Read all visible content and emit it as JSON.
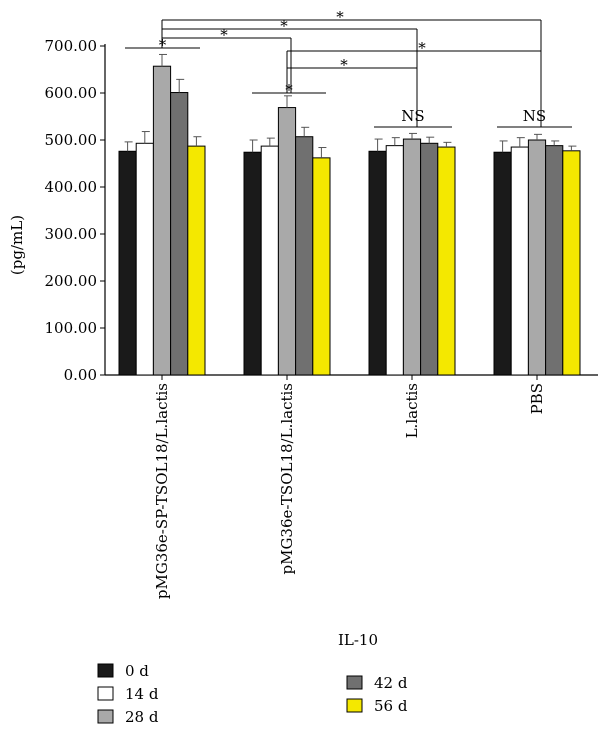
{
  "chart_data": {
    "type": "bar",
    "title": "",
    "xlabel": "IL-10",
    "ylabel": "(pg/mL)",
    "ylim": [
      0,
      700
    ],
    "yticks": [
      "0.00",
      "100.00",
      "200.00",
      "300.00",
      "400.00",
      "500.00",
      "600.00",
      "700.00"
    ],
    "categories": [
      "pMG36e-SP-TSOL18/L.lactis",
      "pMG36e-TSOL18/L.lactis",
      "L.lactis",
      "PBS"
    ],
    "series": [
      {
        "name": "0 d",
        "color": "#1a1a1a",
        "values": [
          476,
          474,
          476,
          474
        ],
        "errors": [
          20,
          26,
          26,
          24
        ]
      },
      {
        "name": "14 d",
        "color": "#ffffff",
        "values": [
          493,
          487,
          488,
          485
        ],
        "errors": [
          25,
          17,
          17,
          20
        ]
      },
      {
        "name": "28 d",
        "color": "#a9a9a9",
        "values": [
          657,
          569,
          502,
          500
        ],
        "errors": [
          25,
          25,
          12,
          12
        ]
      },
      {
        "name": "42 d",
        "color": "#707070",
        "values": [
          601,
          507,
          493,
          488
        ],
        "errors": [
          28,
          20,
          13,
          10
        ]
      },
      {
        "name": "56 d",
        "color": "#f4e800",
        "values": [
          487,
          462,
          485,
          477
        ],
        "errors": [
          20,
          22,
          10,
          10
        ]
      }
    ],
    "grid": false,
    "legend": "bottom",
    "annotations": [
      {
        "text": "*",
        "between": [
          "pMG36e-SP-TSOL18/L.lactis",
          "pMG36e-SP-TSOL18/L.lactis"
        ],
        "note": "within group"
      },
      {
        "text": "*",
        "between": [
          "pMG36e-TSOL18/L.lactis",
          "pMG36e-TSOL18/L.lactis"
        ],
        "note": "within group"
      },
      {
        "text": "NS",
        "between": [
          "L.lactis",
          "L.lactis"
        ],
        "note": "within group"
      },
      {
        "text": "NS",
        "between": [
          "PBS",
          "PBS"
        ],
        "note": "within group"
      },
      {
        "text": "*",
        "between": [
          "pMG36e-SP-TSOL18/L.lactis",
          "pMG36e-TSOL18/L.lactis"
        ]
      },
      {
        "text": "*",
        "between": [
          "pMG36e-SP-TSOL18/L.lactis",
          "L.lactis"
        ]
      },
      {
        "text": "*",
        "between": [
          "pMG36e-SP-TSOL18/L.lactis",
          "PBS"
        ]
      },
      {
        "text": "*",
        "between": [
          "pMG36e-TSOL18/L.lactis",
          "L.lactis"
        ]
      },
      {
        "text": "*",
        "between": [
          "pMG36e-TSOL18/L.lactis",
          "PBS"
        ]
      }
    ]
  }
}
